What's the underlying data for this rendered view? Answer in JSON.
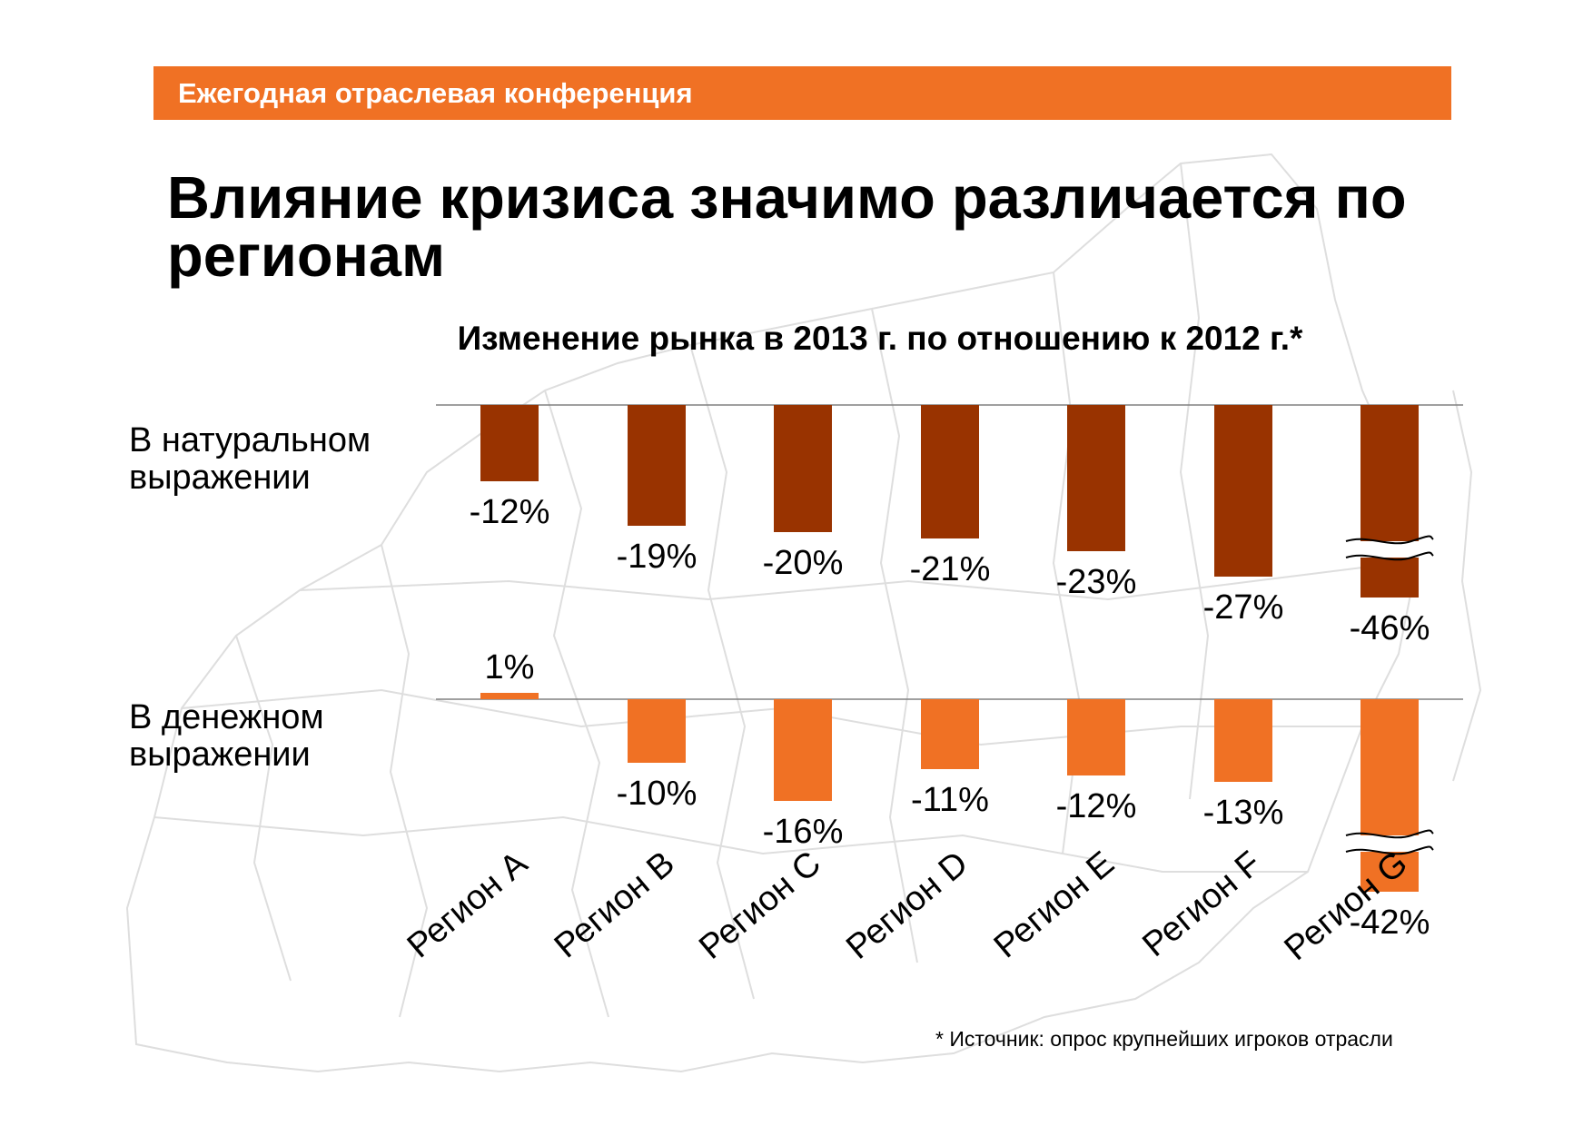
{
  "header": {
    "text": "Ежегодная отраслевая конференция"
  },
  "title": "Влияние кризиса значимо различается по регионам",
  "footnote": "* Источник: опрос крупнейших игроков отрасли",
  "colors": {
    "accent": "#f07124",
    "series_natural": "#993300",
    "series_money": "#f07124",
    "map": "#dcdcdc"
  },
  "chart_data": {
    "type": "bar",
    "title": "Изменение рынка в 2013 г. по отношению к 2012 г.*",
    "categories": [
      "Регион A",
      "Регион B",
      "Регион C",
      "Регион D",
      "Регион E",
      "Регион F",
      "Регион G"
    ],
    "series": [
      {
        "name": "В натуральном выражении",
        "values": [
          -12,
          -19,
          -20,
          -21,
          -23,
          -27,
          -46
        ],
        "labels": [
          "-12%",
          "-19%",
          "-20%",
          "-21%",
          "-23%",
          "-27%",
          "-46%"
        ],
        "broken_axis_last": true
      },
      {
        "name": "В денежном выражении",
        "values": [
          1,
          -10,
          -16,
          -11,
          -12,
          -13,
          -42
        ],
        "labels": [
          "1%",
          "-10%",
          "-16%",
          "-11%",
          "-12%",
          "-13%",
          "-42%"
        ],
        "broken_axis_last": true
      }
    ],
    "grid": false,
    "legend": "left"
  }
}
